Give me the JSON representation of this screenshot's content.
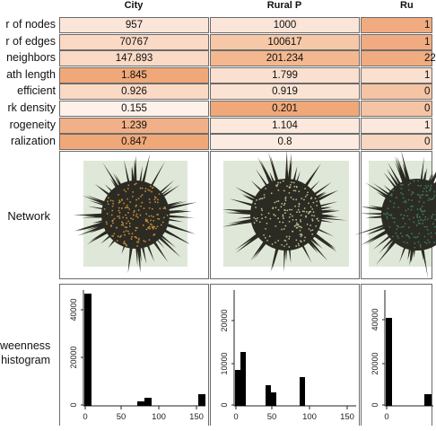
{
  "header": {
    "columns": [
      "City",
      "Rural P",
      "Ru"
    ]
  },
  "rows": [
    {
      "label": "r of nodes",
      "values": [
        "957",
        "1000",
        "1"
      ]
    },
    {
      "label": "r of edges",
      "values": [
        "70767",
        "100617",
        "1"
      ]
    },
    {
      "label": "neighbors",
      "values": [
        "147.893",
        "201.234",
        "22"
      ]
    },
    {
      "label": "ath length",
      "values": [
        "1.845",
        "1.799",
        "1"
      ]
    },
    {
      "label": "efficient",
      "values": [
        "0.926",
        "0.919",
        "0"
      ]
    },
    {
      "label": "rk density",
      "values": [
        "0.155",
        "0.201",
        "0"
      ]
    },
    {
      "label": "rogeneity",
      "values": [
        "1.239",
        "1.104",
        "1"
      ]
    },
    {
      "label": "ralization",
      "values": [
        "0.847",
        "0.8",
        "0"
      ]
    }
  ],
  "cell_colors": [
    [
      "#fbe5d8",
      "#fbe5d8",
      "#f0ac80"
    ],
    [
      "#fad9c5",
      "#f6c8a8",
      "#f0ac80"
    ],
    [
      "#fad9c5",
      "#f3b890",
      "#f0ac80"
    ],
    [
      "#f0a878",
      "#fbe0cf",
      "#fbe0cf"
    ],
    [
      "#fad9c5",
      "#fbe3d4",
      "#f5c4a4"
    ],
    [
      "#fdf1ea",
      "#f0a878",
      "#f5c4a4"
    ],
    [
      "#f2b088",
      "#fce8dc",
      "#fce8dc"
    ],
    [
      "#f0a878",
      "#fcebe1",
      "#f8d6c0"
    ]
  ],
  "network_label": "Network",
  "histogram_label": [
    "weenness",
    "histogram"
  ],
  "histograms": [
    {
      "ylabels": [
        "40000",
        "20000",
        "0"
      ],
      "xlabels": [
        "0",
        "50",
        "100",
        "150"
      ]
    },
    {
      "ylabels": [
        "20000",
        "10000",
        "0"
      ],
      "xlabels": [
        "0",
        "50",
        "100",
        "150"
      ]
    },
    {
      "ylabels": [
        "40000",
        "20000",
        "0"
      ],
      "xlabels": [
        "0"
      ]
    }
  ]
}
